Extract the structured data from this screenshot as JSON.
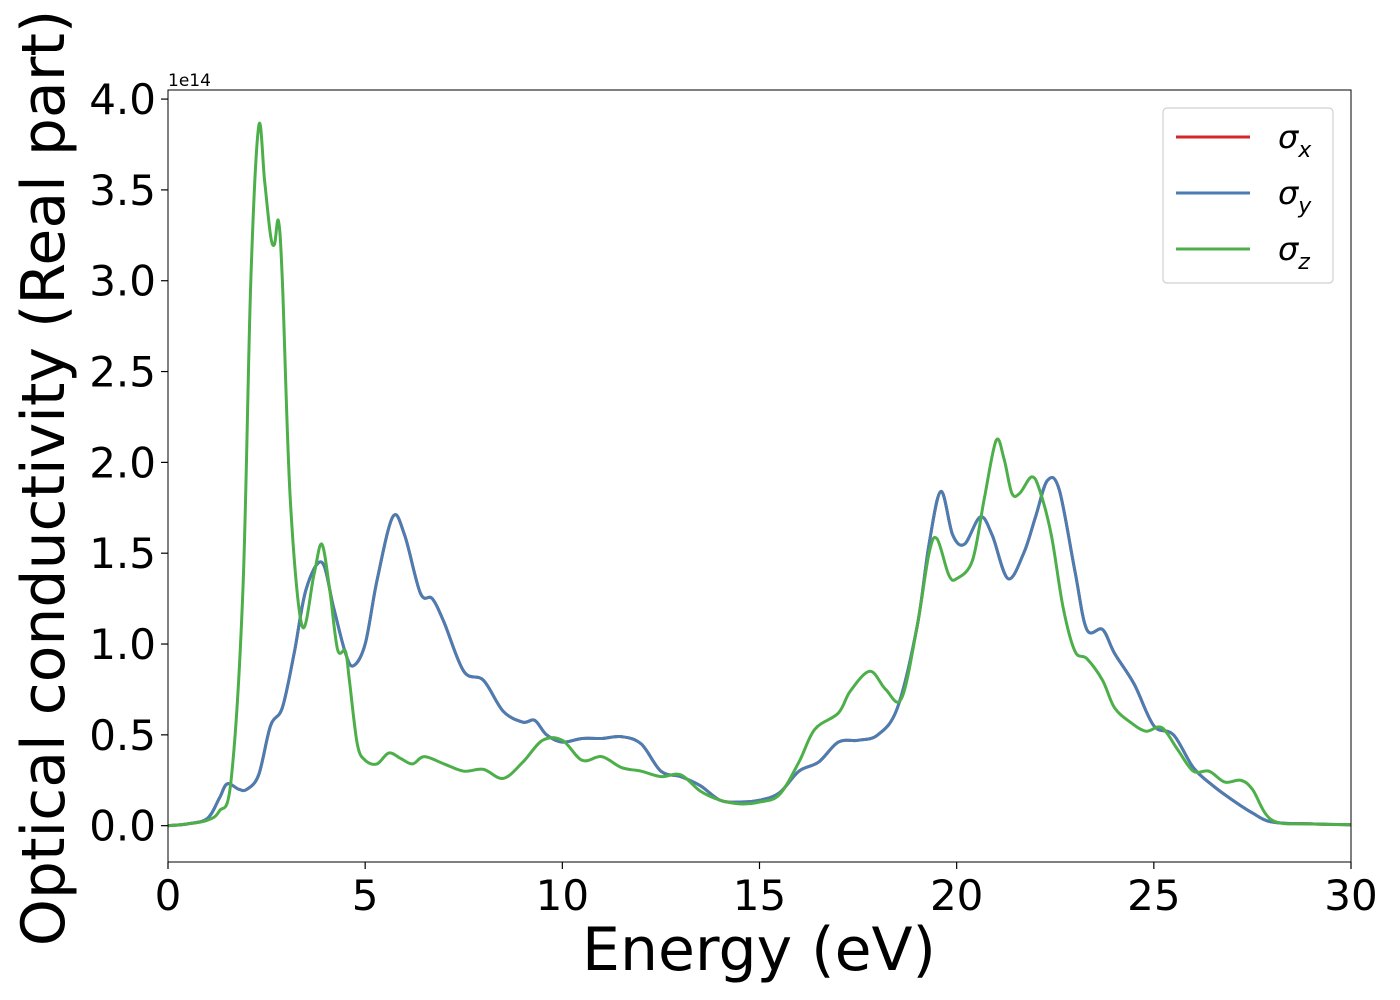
{
  "chart_data": {
    "type": "line",
    "xlabel": "Energy (eV)",
    "ylabel": "Optical conductivity (Real part)",
    "y_offset_label": "1e14",
    "xlim": [
      0,
      30
    ],
    "ylim": [
      -0.2,
      4.05
    ],
    "x_ticks": [
      0,
      5,
      10,
      15,
      20,
      25,
      30
    ],
    "x_tick_labels": [
      "0",
      "5",
      "10",
      "15",
      "20",
      "25",
      "30"
    ],
    "y_ticks": [
      0.0,
      0.5,
      1.0,
      1.5,
      2.0,
      2.5,
      3.0,
      3.5,
      4.0
    ],
    "y_tick_labels": [
      "0.0",
      "0.5",
      "1.0",
      "1.5",
      "2.0",
      "2.5",
      "3.0",
      "3.5",
      "4.0"
    ],
    "grid": false,
    "legend_position": "top-right",
    "series": [
      {
        "name": "σ",
        "subscript": "x",
        "color": "#d62728",
        "x": [
          0,
          0.5,
          1.0,
          1.3,
          1.5,
          1.8,
          2.0,
          2.3,
          2.6,
          2.9,
          3.2,
          3.5,
          3.9,
          4.2,
          4.5,
          4.7,
          5.0,
          5.3,
          5.7,
          6.0,
          6.4,
          6.7,
          7.0,
          7.5,
          8.0,
          8.5,
          9.0,
          9.3,
          9.6,
          10.0,
          10.5,
          11.0,
          11.5,
          12.0,
          12.5,
          13.0,
          13.5,
          14.0,
          14.5,
          15.0,
          15.5,
          16.0,
          16.5,
          17.0,
          17.5,
          18.0,
          18.5,
          19.0,
          19.3,
          19.6,
          19.9,
          20.2,
          20.6,
          20.9,
          21.3,
          21.7,
          22.0,
          22.3,
          22.6,
          23.0,
          23.3,
          23.7,
          24.0,
          24.5,
          25.0,
          25.5,
          26.0,
          26.5,
          27.0,
          27.5,
          28.0,
          29.0,
          30.0
        ],
        "values": [
          0.0,
          0.01,
          0.04,
          0.15,
          0.23,
          0.2,
          0.2,
          0.28,
          0.55,
          0.65,
          0.95,
          1.3,
          1.45,
          1.2,
          0.95,
          0.88,
          1.0,
          1.35,
          1.7,
          1.6,
          1.28,
          1.25,
          1.12,
          0.85,
          0.8,
          0.63,
          0.57,
          0.58,
          0.5,
          0.46,
          0.48,
          0.48,
          0.49,
          0.45,
          0.3,
          0.27,
          0.22,
          0.14,
          0.13,
          0.14,
          0.18,
          0.3,
          0.35,
          0.46,
          0.47,
          0.5,
          0.65,
          1.1,
          1.55,
          1.84,
          1.6,
          1.55,
          1.7,
          1.6,
          1.36,
          1.5,
          1.7,
          1.9,
          1.85,
          1.4,
          1.08,
          1.08,
          0.95,
          0.78,
          0.55,
          0.5,
          0.32,
          0.22,
          0.14,
          0.07,
          0.02,
          0.01,
          0.005
        ]
      },
      {
        "name": "σ",
        "subscript": "y",
        "color": "#4a7eb3",
        "x": [
          0,
          0.5,
          1.0,
          1.3,
          1.5,
          1.8,
          2.0,
          2.3,
          2.6,
          2.9,
          3.2,
          3.5,
          3.9,
          4.2,
          4.5,
          4.7,
          5.0,
          5.3,
          5.7,
          6.0,
          6.4,
          6.7,
          7.0,
          7.5,
          8.0,
          8.5,
          9.0,
          9.3,
          9.6,
          10.0,
          10.5,
          11.0,
          11.5,
          12.0,
          12.5,
          13.0,
          13.5,
          14.0,
          14.5,
          15.0,
          15.5,
          16.0,
          16.5,
          17.0,
          17.5,
          18.0,
          18.5,
          19.0,
          19.3,
          19.6,
          19.9,
          20.2,
          20.6,
          20.9,
          21.3,
          21.7,
          22.0,
          22.3,
          22.6,
          23.0,
          23.3,
          23.7,
          24.0,
          24.5,
          25.0,
          25.5,
          26.0,
          26.5,
          27.0,
          27.5,
          28.0,
          29.0,
          30.0
        ],
        "values": [
          0.0,
          0.01,
          0.04,
          0.15,
          0.23,
          0.2,
          0.2,
          0.28,
          0.55,
          0.65,
          0.95,
          1.3,
          1.45,
          1.2,
          0.95,
          0.88,
          1.0,
          1.35,
          1.7,
          1.6,
          1.28,
          1.25,
          1.12,
          0.85,
          0.8,
          0.63,
          0.57,
          0.58,
          0.5,
          0.46,
          0.48,
          0.48,
          0.49,
          0.45,
          0.3,
          0.27,
          0.22,
          0.14,
          0.13,
          0.14,
          0.18,
          0.3,
          0.35,
          0.46,
          0.47,
          0.5,
          0.65,
          1.1,
          1.55,
          1.84,
          1.6,
          1.55,
          1.7,
          1.6,
          1.36,
          1.5,
          1.7,
          1.9,
          1.85,
          1.4,
          1.08,
          1.08,
          0.95,
          0.78,
          0.55,
          0.5,
          0.32,
          0.22,
          0.14,
          0.07,
          0.02,
          0.01,
          0.005
        ]
      },
      {
        "name": "σ",
        "subscript": "z",
        "color": "#4daf4a",
        "x": [
          0,
          0.5,
          1.0,
          1.3,
          1.6,
          1.9,
          2.1,
          2.3,
          2.45,
          2.6,
          2.7,
          2.8,
          2.9,
          3.1,
          3.4,
          3.7,
          3.9,
          4.1,
          4.3,
          4.5,
          4.6,
          4.8,
          5.0,
          5.3,
          5.6,
          5.9,
          6.2,
          6.5,
          7.0,
          7.5,
          8.0,
          8.5,
          9.0,
          9.5,
          10.0,
          10.5,
          11.0,
          11.5,
          12.0,
          12.5,
          13.0,
          13.5,
          14.0,
          14.5,
          15.0,
          15.5,
          16.0,
          16.4,
          17.0,
          17.3,
          17.8,
          18.2,
          18.6,
          19.0,
          19.3,
          19.5,
          19.8,
          20.0,
          20.4,
          20.7,
          21.0,
          21.2,
          21.4,
          21.6,
          21.9,
          22.1,
          22.4,
          22.7,
          23.0,
          23.3,
          23.7,
          24.0,
          24.4,
          24.8,
          25.2,
          25.6,
          26.0,
          26.4,
          26.8,
          27.2,
          27.5,
          28.0,
          29.0,
          30.0
        ],
        "values": [
          0.0,
          0.01,
          0.03,
          0.08,
          0.25,
          1.3,
          3.0,
          3.85,
          3.55,
          3.25,
          3.2,
          3.33,
          3.0,
          1.8,
          1.1,
          1.38,
          1.55,
          1.3,
          0.97,
          0.96,
          0.8,
          0.45,
          0.36,
          0.34,
          0.4,
          0.37,
          0.34,
          0.38,
          0.34,
          0.3,
          0.31,
          0.26,
          0.35,
          0.47,
          0.47,
          0.36,
          0.38,
          0.32,
          0.3,
          0.27,
          0.28,
          0.19,
          0.14,
          0.12,
          0.13,
          0.17,
          0.35,
          0.53,
          0.62,
          0.74,
          0.85,
          0.75,
          0.7,
          1.1,
          1.5,
          1.58,
          1.38,
          1.36,
          1.46,
          1.8,
          2.12,
          2.02,
          1.83,
          1.83,
          1.92,
          1.85,
          1.6,
          1.2,
          0.96,
          0.92,
          0.8,
          0.65,
          0.57,
          0.52,
          0.54,
          0.42,
          0.3,
          0.3,
          0.24,
          0.25,
          0.2,
          0.03,
          0.01,
          0.005
        ]
      }
    ]
  }
}
